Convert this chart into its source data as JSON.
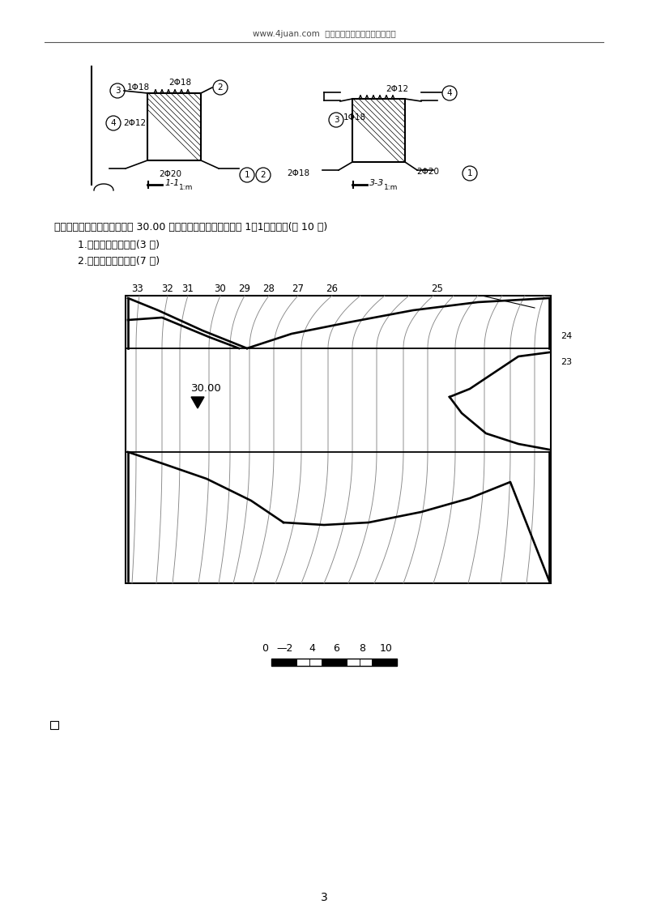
{
  "page_width": 8.0,
  "page_height": 11.32,
  "dpi": 100,
  "bg_color": "#ffffff",
  "header_text": "www.4juan.com  专注于收集历年试题试卷和答案",
  "question_line1": "十、要在地形图上筑一标高为 30.00 的场地，其填挖方边坡均为 1：1，求作：(共 10 分)",
  "question_line2": "    1.边坡与边坡的交线(3 分)",
  "question_line3": "    2.边皮与地面的交线(7 分)",
  "contour_top_labels": [
    [
      "33",
      170
    ],
    [
      "32",
      207
    ],
    [
      "31",
      232
    ],
    [
      "30",
      272
    ],
    [
      "29",
      302
    ],
    [
      "28",
      332
    ],
    [
      "27",
      368
    ],
    [
      "26",
      410
    ],
    [
      "25",
      540
    ]
  ],
  "contour_right_labels": [
    [
      "24",
      690
    ],
    [
      "23",
      690
    ]
  ],
  "label_30": "30.00",
  "scale_text_parts": [
    "0",
    "—2",
    "4",
    "6",
    "8",
    "10"
  ],
  "page_num": "3"
}
